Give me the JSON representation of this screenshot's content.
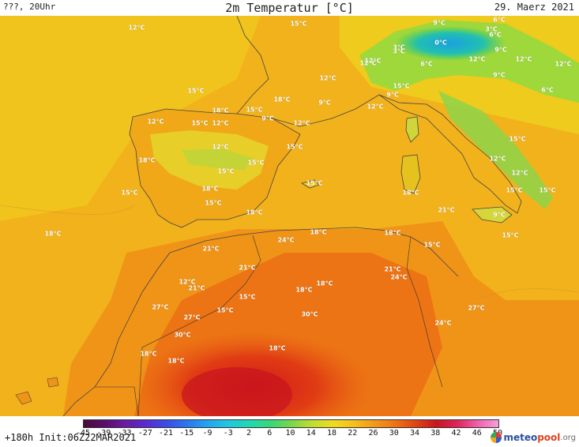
{
  "header": {
    "left_label": "???, 20Uhr",
    "title": "2m Temperatur [°C]",
    "date": "29. Maerz 2021"
  },
  "map": {
    "labels": [
      "12°C",
      "15°C",
      "9°C",
      "6°C",
      "0°C",
      "3°C",
      "6°C",
      "9°C",
      "3°C",
      "3°C",
      "6°C",
      "12°C",
      "12°C",
      "12°C",
      "12°C",
      "9°C",
      "15°C",
      "9°C",
      "6°C",
      "12°C",
      "15°C",
      "18°C",
      "18°C",
      "15°C",
      "12°C",
      "15°C",
      "12°C",
      "9°C",
      "12°C",
      "9°C",
      "12°C",
      "12°C",
      "15°C",
      "12°C",
      "15°C",
      "18°C",
      "15°C",
      "12°C",
      "15°C",
      "18°C",
      "15°C",
      "9°C",
      "12°C",
      "15°C",
      "15°C",
      "15°C",
      "18°C",
      "21°C",
      "18°C",
      "15°C",
      "15°C",
      "24°C",
      "18°C",
      "21°C",
      "18°C",
      "15°C",
      "18°C",
      "21°C",
      "21°C",
      "24°C",
      "12°C",
      "21°C",
      "18°C",
      "18°C",
      "15°C",
      "27°C",
      "15°C",
      "27°C",
      "30°C",
      "27°C",
      "30°C",
      "24°C",
      "18°C",
      "18°C",
      "18°C"
    ]
  },
  "colorbar": {
    "ticks": [
      "-45",
      "-39",
      "-33",
      "-27",
      "-21",
      "-15",
      "-9",
      "-3",
      "2",
      "6",
      "10",
      "14",
      "18",
      "22",
      "26",
      "30",
      "34",
      "38",
      "42",
      "46",
      "50"
    ],
    "colors": [
      "#4a0a3a",
      "#5a0e6a",
      "#6a1ca0",
      "#5a2ad0",
      "#3a4ee6",
      "#2a78f0",
      "#22a6f0",
      "#20c8e0",
      "#22d8b0",
      "#36d878",
      "#7ad64a",
      "#c0dc30",
      "#eedc1e",
      "#f6c01a",
      "#f39a18",
      "#ee7414",
      "#e04414",
      "#c8141e",
      "#e0245a",
      "#f060a8",
      "#f4a0dc"
    ]
  },
  "footer": {
    "init_label": "+180h Init:06Z22MAR2021",
    "logo_text_a": "meteo",
    "logo_text_b": "pool",
    "logo_text_c": ".org"
  }
}
